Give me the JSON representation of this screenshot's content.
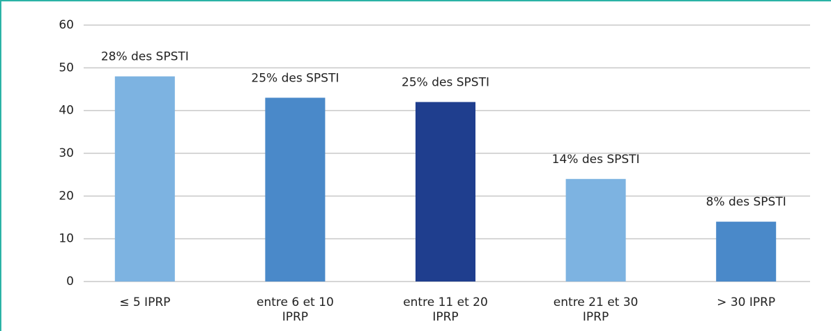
{
  "chart_data": {
    "type": "bar",
    "categories": [
      "≤ 5 IPRP",
      "entre 6 et 10 IPRP",
      "entre 11 et 20 IPRP",
      "entre 21 et 30 IPRP",
      "> 30 IPRP"
    ],
    "values": [
      48,
      43,
      42,
      24,
      14
    ],
    "colors": [
      "#7db3e1",
      "#4a89c9",
      "#1f3e8e",
      "#7db3e1",
      "#4a89c9"
    ],
    "annotations": [
      "28% des SPSTI",
      "25% des SPSTI",
      "25% des SPSTI",
      "14% des SPSTI",
      "8% des SPSTI"
    ],
    "ylim": [
      0,
      60
    ],
    "yticks": [
      0,
      10,
      20,
      30,
      40,
      50,
      60
    ],
    "grid": true
  }
}
